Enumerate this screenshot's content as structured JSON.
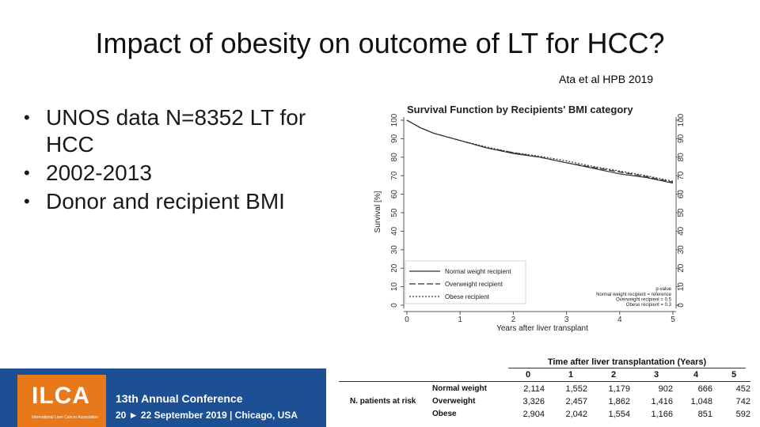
{
  "slide": {
    "title": "Impact of obesity on outcome of LT for HCC?",
    "citation": "Ata et al HPB 2019",
    "bullets": [
      "UNOS data N=8352 LT for HCC",
      "2002-2013",
      "Donor and recipient BMI"
    ]
  },
  "chart_data": {
    "type": "line",
    "title": "Survival Function by Recipients' BMI category",
    "xlabel": "Years after liver transplant",
    "ylabel": "Survival [%]",
    "xlim": [
      0,
      5
    ],
    "ylim": [
      0,
      100
    ],
    "xticks": [
      0,
      1,
      2,
      3,
      4,
      5
    ],
    "yticks": [
      0,
      10,
      20,
      30,
      40,
      50,
      60,
      70,
      80,
      90,
      100
    ],
    "series": [
      {
        "name": "Normal weight recipient",
        "style": "solid",
        "x": [
          0,
          0.25,
          0.5,
          1,
          1.5,
          2,
          2.5,
          3,
          3.5,
          4,
          4.5,
          5
        ],
        "y": [
          100,
          96,
          93,
          89,
          85,
          82,
          80,
          77,
          74,
          71,
          69,
          66
        ]
      },
      {
        "name": "Overweight recipient",
        "style": "longdash",
        "x": [
          0,
          0.25,
          0.5,
          1,
          1.5,
          2,
          2.5,
          3,
          3.5,
          4,
          4.5,
          5
        ],
        "y": [
          100,
          96,
          93,
          89,
          85,
          82.5,
          80,
          77,
          74.5,
          72,
          69.5,
          66.5
        ]
      },
      {
        "name": "Obese recipient",
        "style": "dotted",
        "x": [
          0,
          0.25,
          0.5,
          1,
          1.5,
          2,
          2.5,
          3,
          3.5,
          4,
          4.5,
          5
        ],
        "y": [
          100,
          96,
          93,
          89,
          85.5,
          82.5,
          80.5,
          78,
          75,
          72.5,
          70,
          67
        ]
      }
    ],
    "pvalue_box": {
      "header": "p-value",
      "lines": [
        "Normal weight recipient = reference",
        "Overweight recipient = 0.5",
        "Obese recipient = 0.3"
      ]
    },
    "legend_position": "bottom-left"
  },
  "risk_table": {
    "header": "Time after liver transplantation (Years)",
    "group_label": "N. patients at risk",
    "columns": [
      "0",
      "1",
      "2",
      "3",
      "4",
      "5"
    ],
    "rows": [
      {
        "label": "Normal weight",
        "values": [
          "2,114",
          "1,552",
          "1,179",
          "902",
          "666",
          "452"
        ]
      },
      {
        "label": "Overweight",
        "values": [
          "3,326",
          "2,457",
          "1,862",
          "1,416",
          "1,048",
          "742"
        ]
      },
      {
        "label": "Obese",
        "values": [
          "2,904",
          "2,042",
          "1,554",
          "1,166",
          "851",
          "592"
        ]
      }
    ]
  },
  "banner": {
    "logo": "ILCA",
    "logo_sub": "International Liver Cancer Association",
    "conference": "13th Annual Conference",
    "dates": "20 ► 22 September 2019 | Chicago, USA"
  }
}
